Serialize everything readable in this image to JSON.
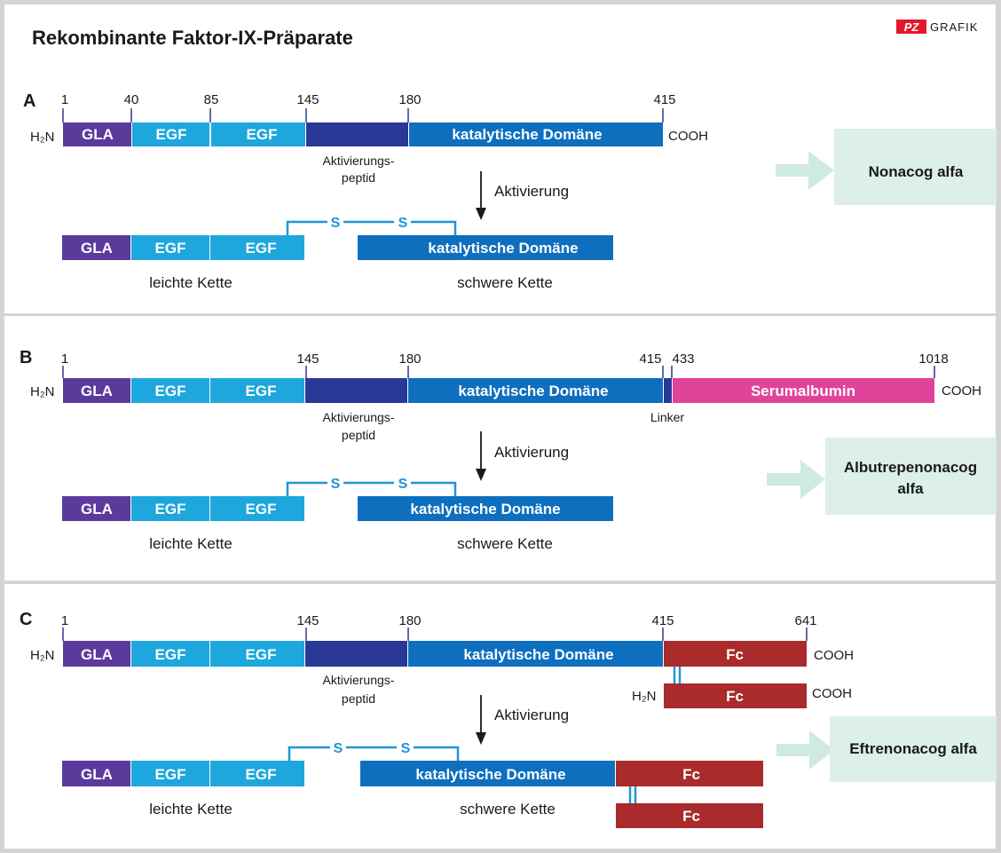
{
  "title": "Rekombinante Faktor-IX-Präparate",
  "brand": {
    "logo_text": "PZ",
    "label": "GRAFIK",
    "logo_color": "#e3182c"
  },
  "labels": {
    "h2n": "H₂N",
    "cooh": "COOH",
    "aktivierungspeptid_line1": "Aktivierungs-",
    "aktivierungspeptid_line2": "peptid",
    "aktivierung": "Aktivierung",
    "leichte_kette": "leichte Kette",
    "schwere_kette": "schwere Kette",
    "linker": "Linker",
    "sulfur": "S"
  },
  "domains": {
    "gla": "GLA",
    "egf": "EGF",
    "katalytisch": "katalytische Domäne",
    "serumalbumin": "Serumalbumin",
    "fc": "Fc"
  },
  "colors": {
    "gla": "#5b3a9c",
    "egf": "#1ea7dd",
    "aktivierungspeptid": "#2a3896",
    "katalytisch": "#0f6fbf",
    "serumalbumin": "#e2439a",
    "fc": "#a92b2b",
    "disulfide": "#1e96d6",
    "product_box": "#dcefea",
    "product_arrow": "#cfe9e3",
    "panel_bg": "#ffffff",
    "frame_bg": "#d4d4d4"
  },
  "panels": [
    {
      "letter": "A",
      "positions": [
        "1",
        "40",
        "85",
        "145",
        "180",
        "415"
      ],
      "product": [
        "Nonacog alfa"
      ]
    },
    {
      "letter": "B",
      "positions": [
        "1",
        "145",
        "180",
        "415",
        "433",
        "1018"
      ],
      "product": [
        "Albutrepenonacog",
        "alfa"
      ]
    },
    {
      "letter": "C",
      "positions": [
        "1",
        "145",
        "180",
        "415",
        "641"
      ],
      "product": [
        "Eftrenonacog alfa"
      ]
    }
  ]
}
